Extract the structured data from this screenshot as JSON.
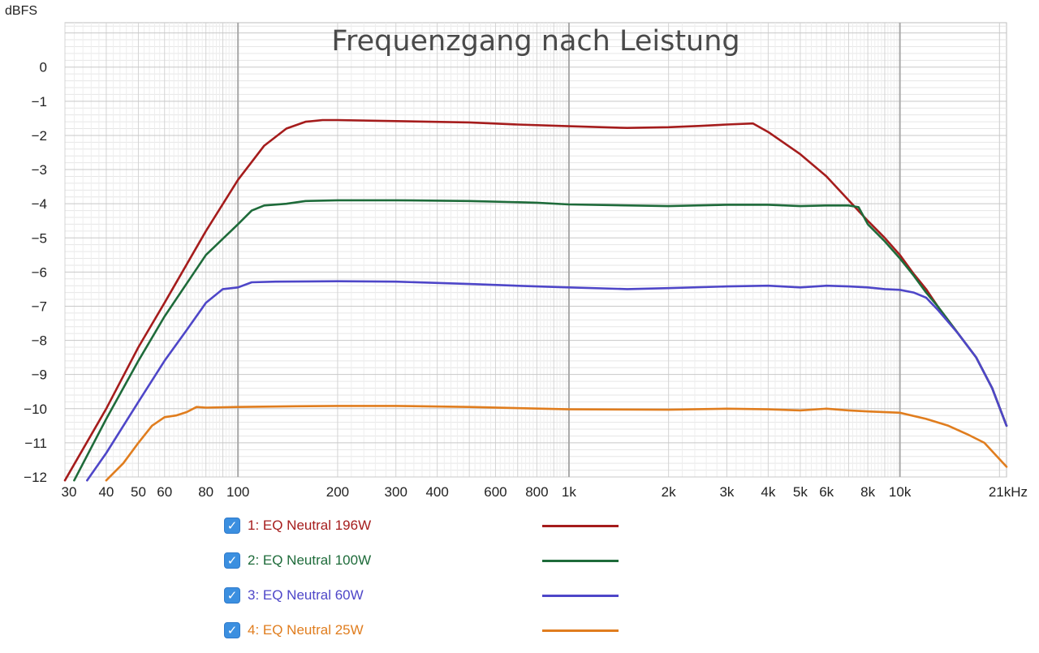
{
  "chart_data": {
    "type": "line",
    "title": "Frequenzgang nach Leistung",
    "ylabel": "dBFS",
    "x_unit": "kHz",
    "x_scale": "log",
    "xlim": [
      30,
      21000
    ],
    "ylim": [
      -12,
      1.3
    ],
    "grid": true,
    "legend_position": "bottom",
    "x_ticks": [
      30,
      40,
      50,
      60,
      80,
      100,
      200,
      300,
      400,
      600,
      800,
      1000,
      2000,
      3000,
      4000,
      5000,
      6000,
      8000,
      10000,
      21000
    ],
    "x_tick_labels": [
      "30",
      "40",
      "50",
      "60",
      "80",
      "100",
      "200",
      "300",
      "400",
      "600",
      "800",
      "1k",
      "2k",
      "3k",
      "4k",
      "5k",
      "6k",
      "8k",
      "10k",
      "21kHz"
    ],
    "y_ticks": [
      0,
      -1,
      -2,
      -3,
      -4,
      -5,
      -6,
      -7,
      -8,
      -9,
      -10,
      -11,
      -12
    ],
    "y_tick_labels": [
      "0",
      "−1",
      "−2",
      "−3",
      "−4",
      "−5",
      "−6",
      "−7",
      "−8",
      "−9",
      "−10",
      "−11",
      "−12"
    ],
    "series": [
      {
        "name": "1: EQ Neutral 196W",
        "color": "#a51c1c",
        "checked": true,
        "points": [
          [
            30,
            -12.1
          ],
          [
            40,
            -10.0
          ],
          [
            50,
            -8.2
          ],
          [
            60,
            -6.9
          ],
          [
            80,
            -4.8
          ],
          [
            100,
            -3.3
          ],
          [
            120,
            -2.3
          ],
          [
            140,
            -1.8
          ],
          [
            160,
            -1.6
          ],
          [
            180,
            -1.55
          ],
          [
            200,
            -1.55
          ],
          [
            300,
            -1.58
          ],
          [
            500,
            -1.62
          ],
          [
            700,
            -1.68
          ],
          [
            1000,
            -1.73
          ],
          [
            1500,
            -1.78
          ],
          [
            2000,
            -1.76
          ],
          [
            2500,
            -1.72
          ],
          [
            3000,
            -1.68
          ],
          [
            3600,
            -1.65
          ],
          [
            4000,
            -1.9
          ],
          [
            5000,
            -2.55
          ],
          [
            6000,
            -3.2
          ],
          [
            7000,
            -3.9
          ],
          [
            8000,
            -4.5
          ],
          [
            9000,
            -5.0
          ],
          [
            10000,
            -5.5
          ],
          [
            11000,
            -6.05
          ],
          [
            12000,
            -6.5
          ],
          [
            13000,
            -7.0
          ],
          [
            15000,
            -7.8
          ],
          [
            17000,
            -8.5
          ],
          [
            19000,
            -9.4
          ],
          [
            21000,
            -10.5
          ]
        ]
      },
      {
        "name": "2: EQ Neutral 100W",
        "color": "#1e6b3a",
        "checked": true,
        "points": [
          [
            32,
            -12.1
          ],
          [
            40,
            -10.3
          ],
          [
            50,
            -8.6
          ],
          [
            60,
            -7.3
          ],
          [
            80,
            -5.5
          ],
          [
            100,
            -4.6
          ],
          [
            110,
            -4.2
          ],
          [
            120,
            -4.05
          ],
          [
            140,
            -4.0
          ],
          [
            160,
            -3.92
          ],
          [
            200,
            -3.9
          ],
          [
            300,
            -3.9
          ],
          [
            500,
            -3.92
          ],
          [
            800,
            -3.97
          ],
          [
            1000,
            -4.02
          ],
          [
            2000,
            -4.07
          ],
          [
            3000,
            -4.03
          ],
          [
            4000,
            -4.03
          ],
          [
            5000,
            -4.07
          ],
          [
            6000,
            -4.05
          ],
          [
            7000,
            -4.05
          ],
          [
            7500,
            -4.1
          ],
          [
            8000,
            -4.6
          ],
          [
            9000,
            -5.1
          ],
          [
            10000,
            -5.6
          ],
          [
            11000,
            -6.1
          ],
          [
            12000,
            -6.6
          ],
          [
            13000,
            -7.0
          ],
          [
            15000,
            -7.8
          ],
          [
            17000,
            -8.5
          ],
          [
            19000,
            -9.4
          ],
          [
            21000,
            -10.5
          ]
        ]
      },
      {
        "name": "3: EQ Neutral 60W",
        "color": "#4e46c8",
        "checked": true,
        "points": [
          [
            35,
            -12.1
          ],
          [
            40,
            -11.3
          ],
          [
            50,
            -9.8
          ],
          [
            60,
            -8.6
          ],
          [
            70,
            -7.7
          ],
          [
            80,
            -6.9
          ],
          [
            90,
            -6.5
          ],
          [
            100,
            -6.45
          ],
          [
            110,
            -6.3
          ],
          [
            130,
            -6.28
          ],
          [
            200,
            -6.27
          ],
          [
            300,
            -6.28
          ],
          [
            500,
            -6.35
          ],
          [
            800,
            -6.42
          ],
          [
            1000,
            -6.45
          ],
          [
            1500,
            -6.5
          ],
          [
            2000,
            -6.47
          ],
          [
            3000,
            -6.42
          ],
          [
            4000,
            -6.4
          ],
          [
            5000,
            -6.45
          ],
          [
            6000,
            -6.4
          ],
          [
            7000,
            -6.42
          ],
          [
            8000,
            -6.45
          ],
          [
            9000,
            -6.5
          ],
          [
            10000,
            -6.52
          ],
          [
            11000,
            -6.6
          ],
          [
            12000,
            -6.75
          ],
          [
            13000,
            -7.1
          ],
          [
            15000,
            -7.8
          ],
          [
            17000,
            -8.5
          ],
          [
            19000,
            -9.4
          ],
          [
            21000,
            -10.5
          ]
        ]
      },
      {
        "name": "4: EQ Neutral 25W",
        "color": "#e07d1e",
        "checked": true,
        "points": [
          [
            40,
            -12.1
          ],
          [
            45,
            -11.6
          ],
          [
            50,
            -11.0
          ],
          [
            55,
            -10.5
          ],
          [
            60,
            -10.25
          ],
          [
            65,
            -10.2
          ],
          [
            70,
            -10.1
          ],
          [
            75,
            -9.95
          ],
          [
            80,
            -9.97
          ],
          [
            100,
            -9.95
          ],
          [
            150,
            -9.93
          ],
          [
            200,
            -9.92
          ],
          [
            300,
            -9.92
          ],
          [
            500,
            -9.95
          ],
          [
            1000,
            -10.02
          ],
          [
            2000,
            -10.03
          ],
          [
            3000,
            -10.0
          ],
          [
            4000,
            -10.02
          ],
          [
            5000,
            -10.05
          ],
          [
            6000,
            -10.0
          ],
          [
            7000,
            -10.05
          ],
          [
            8000,
            -10.08
          ],
          [
            10000,
            -10.12
          ],
          [
            12000,
            -10.3
          ],
          [
            14000,
            -10.5
          ],
          [
            16000,
            -10.75
          ],
          [
            18000,
            -11.0
          ],
          [
            21000,
            -11.7
          ]
        ]
      }
    ]
  }
}
